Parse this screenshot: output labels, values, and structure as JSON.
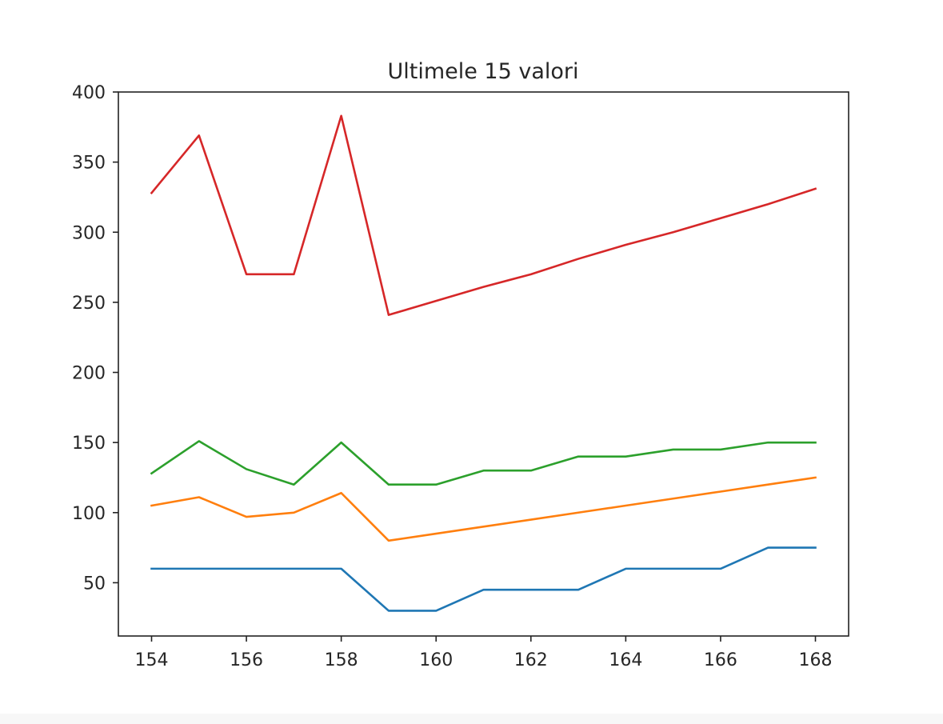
{
  "chart_data": {
    "type": "line",
    "title": "Ultimele 15 valori",
    "xlabel": "",
    "ylabel": "",
    "xlim": [
      153.3,
      168.7
    ],
    "ylim": [
      12,
      400
    ],
    "grid": false,
    "x_ticks": [
      154,
      156,
      158,
      160,
      162,
      164,
      166,
      168
    ],
    "y_ticks": [
      50,
      100,
      150,
      200,
      250,
      300,
      350,
      400
    ],
    "x": [
      154,
      155,
      156,
      157,
      158,
      159,
      160,
      161,
      162,
      163,
      164,
      165,
      166,
      167,
      168
    ],
    "series": [
      {
        "color": "#1f77b4",
        "values": [
          60,
          60,
          60,
          60,
          60,
          30,
          30,
          45,
          45,
          45,
          60,
          60,
          60,
          75,
          75
        ]
      },
      {
        "color": "#ff7f0e",
        "values": [
          105,
          111,
          97,
          100,
          114,
          80,
          85,
          90,
          95,
          100,
          105,
          110,
          115,
          120,
          125
        ]
      },
      {
        "color": "#2ca02c",
        "values": [
          128,
          151,
          131,
          120,
          150,
          120,
          120,
          130,
          130,
          140,
          140,
          145,
          145,
          150,
          150
        ]
      },
      {
        "color": "#d62728",
        "values": [
          328,
          369,
          270,
          270,
          383,
          241,
          251,
          261,
          270,
          281,
          291,
          300,
          310,
          320,
          331
        ]
      }
    ]
  }
}
